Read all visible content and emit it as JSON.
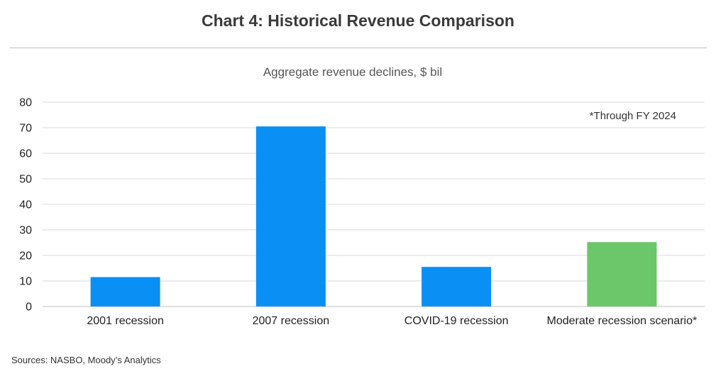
{
  "header": {
    "title": "Chart 4: Historical Revenue Comparison"
  },
  "chart_data": {
    "type": "bar",
    "title": "Chart 4: Historical Revenue Comparison",
    "subtitle": "Aggregate revenue declines, $ bil",
    "xlabel": "",
    "ylabel": "",
    "categories": [
      "2001 recession",
      "2007 recession",
      "COVID-19 recession",
      "Moderate recession scenario*"
    ],
    "values": [
      11.5,
      70.5,
      15.5,
      25.2
    ],
    "bar_colors": [
      "#0a8ff5",
      "#0a8ff5",
      "#0a8ff5",
      "#6cc66a"
    ],
    "ylim": [
      0,
      80
    ],
    "yticks": [
      0,
      10,
      20,
      30,
      40,
      50,
      60,
      70,
      80
    ],
    "grid": true,
    "annotation": "*Through FY 2024"
  },
  "colors": {
    "historical": "#0a8ff5",
    "scenario": "#6cc66a",
    "gridline": "#d9d9d9"
  },
  "footer": {
    "source": "Sources: NASBO, Moody’s Analytics"
  }
}
